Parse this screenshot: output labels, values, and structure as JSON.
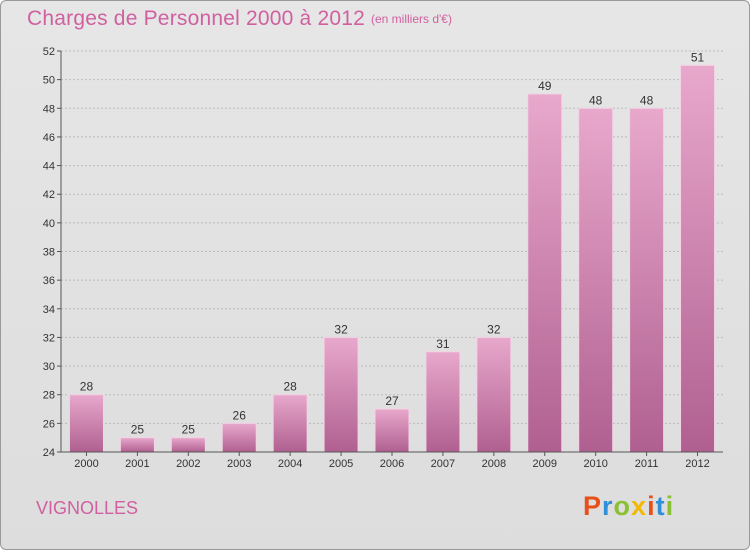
{
  "header": {
    "title": "Charges de Personnel 2000 à 2012",
    "subtitle": "(en milliers d'€)"
  },
  "footer": {
    "commune": "VIGNOLLES",
    "brand": "Proxiti",
    "brand_colors": [
      "#e8501a",
      "#2f8fd8",
      "#8bc034",
      "#f5b800",
      "#e8501a",
      "#2f8fd8",
      "#8bc034"
    ]
  },
  "colors": {
    "accent": "#d060a0",
    "bar_top": "#e8a8cc",
    "bar_bottom": "#b06090",
    "grid": "#bbbbbb"
  },
  "chart_data": {
    "type": "bar",
    "categories": [
      "2000",
      "2001",
      "2002",
      "2003",
      "2004",
      "2005",
      "2006",
      "2007",
      "2008",
      "2009",
      "2010",
      "2011",
      "2012"
    ],
    "values": [
      28,
      25,
      25,
      26,
      28,
      32,
      27,
      31,
      32,
      49,
      48,
      48,
      51
    ],
    "ylim": [
      24,
      52
    ],
    "yticks": [
      24,
      26,
      28,
      30,
      32,
      34,
      36,
      38,
      40,
      42,
      44,
      46,
      48,
      50,
      52
    ],
    "grid": true,
    "legend": "none"
  }
}
